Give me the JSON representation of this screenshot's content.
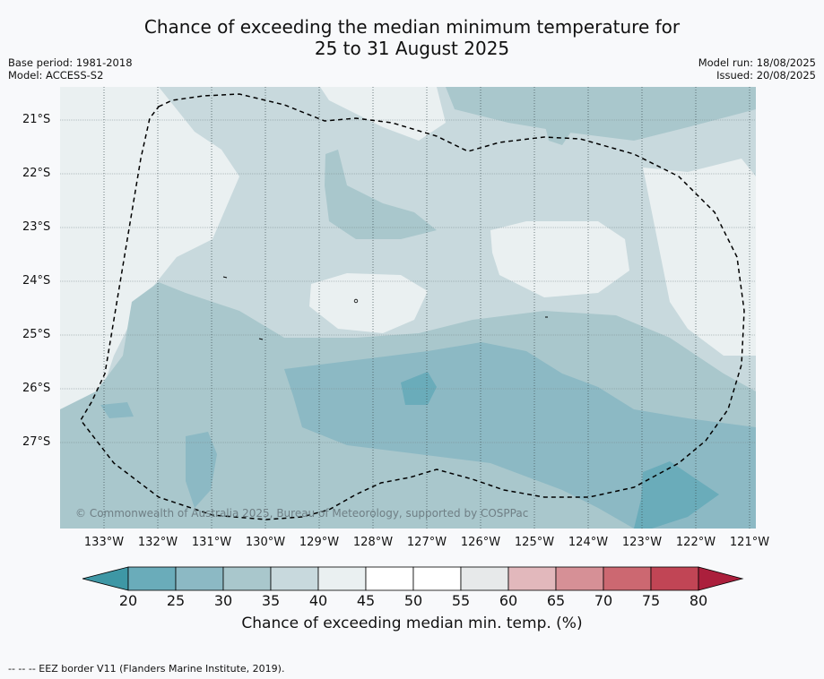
{
  "title_line1": "Chance of exceeding the median minimum temperature for",
  "title_line2": "25 to 31 August 2025",
  "base_period": "Base period: 1981-2018",
  "model": "Model: ACCESS-S2",
  "model_run": "Model run: 18/08/2025",
  "issued": "Issued: 20/08/2025",
  "latitudes": [
    "21°S",
    "22°S",
    "23°S",
    "24°S",
    "25°S",
    "26°S",
    "27°S"
  ],
  "longitudes": [
    "133°W",
    "132°W",
    "131°W",
    "130°W",
    "129°W",
    "128°W",
    "127°W",
    "126°W",
    "125°W",
    "124°W",
    "123°W",
    "122°W",
    "121°W"
  ],
  "copyright": "© Commonwealth of Australia 2025, Bureau of Meteorology, supported by COSPPac",
  "colorbar": {
    "title": "Chance of exceeding median min. temp. (%)",
    "ticks": [
      "20",
      "25",
      "30",
      "35",
      "40",
      "45",
      "50",
      "55",
      "60",
      "65",
      "70",
      "75",
      "80"
    ],
    "colors": {
      "lt20": "#3e97a5",
      "b20_25": "#6aacba",
      "b25_30": "#8cb9c4",
      "b30_35": "#a9c7cc",
      "b35_40": "#c8d9dd",
      "b40_45": "#eaf0f1",
      "b45_55": "#ffffff",
      "b55_60": "#e7e9ea",
      "b60_65": "#e2b8bc",
      "b65_70": "#d69096",
      "b70_75": "#cc6871",
      "b75_80": "#c14555",
      "gt80": "#ab1f3c"
    }
  },
  "footer": "--  --  -- EEZ border V11 (Flanders Marine Institute, 2019)."
}
